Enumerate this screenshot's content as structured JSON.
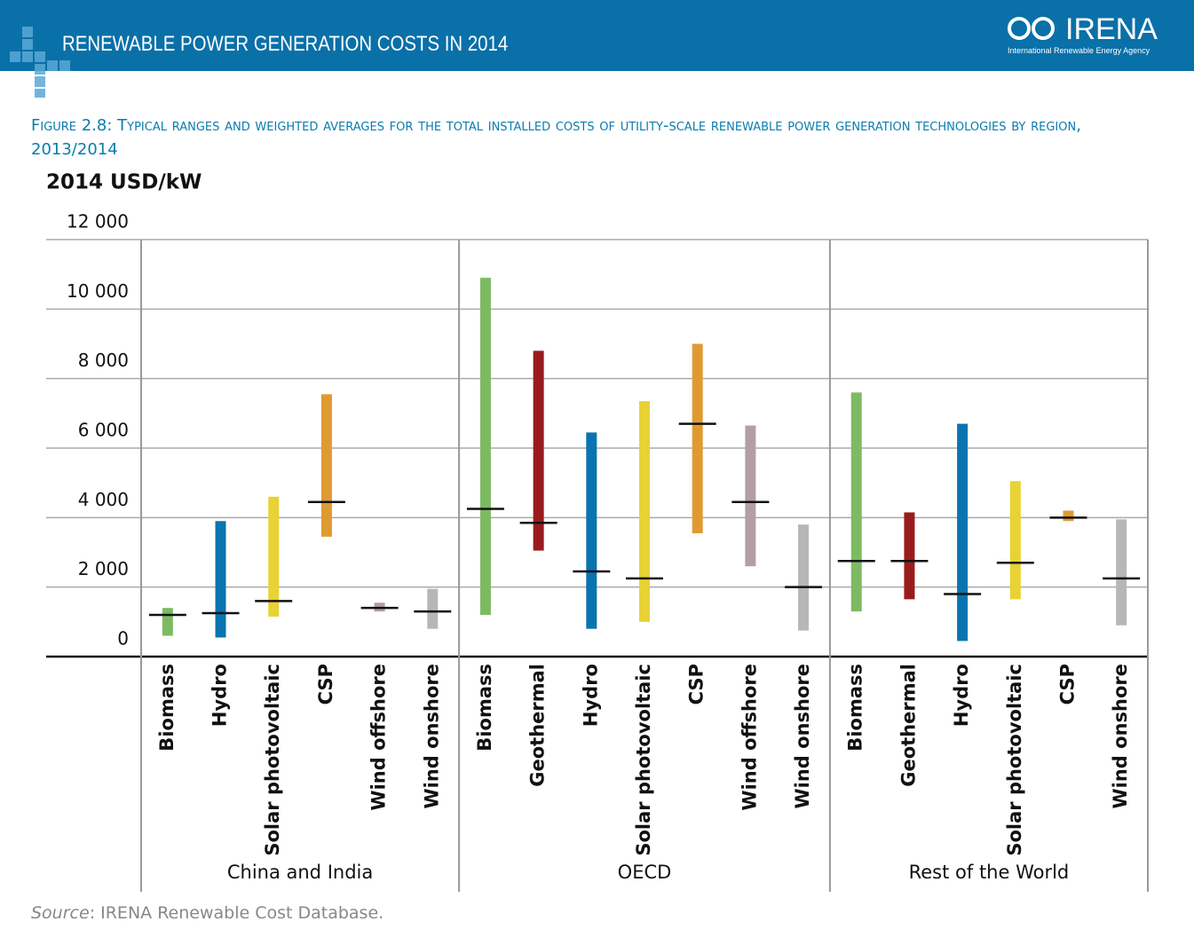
{
  "header": {
    "title": "RENEWABLE POWER GENERATION COSTS IN 2014",
    "logo": "IRENA",
    "logo_subtitle": "International Renewable Energy Agency"
  },
  "figure_title": "Figure 2.8: Typical ranges and weighted averages for the total installed costs of utility-scale renewable power generation technologies by region, 2013/2014",
  "source": {
    "label": "Source",
    "text": ": IRENA Renewable Cost Database."
  },
  "chart_data": {
    "type": "range",
    "y_label": "2014 USD/kW",
    "ylim": [
      0,
      12000
    ],
    "yticks": [
      0,
      {
        "value": 2000,
        "label": "2 000"
      },
      {
        "value": 4000,
        "label": "4 000"
      },
      {
        "value": 6000,
        "label": "6 000"
      },
      {
        "value": 8000,
        "label": "8 000"
      },
      {
        "value": 10000,
        "label": "10 000"
      },
      {
        "value": 12000,
        "label": "12 000"
      }
    ],
    "grid": true,
    "groups": [
      {
        "name": "China and India",
        "categories": [
          "Biomass",
          "Hydro",
          "Solar photovoltaic",
          "CSP",
          "Wind offshore",
          "Wind onshore"
        ],
        "low": [
          600,
          550,
          1150,
          3450,
          1300,
          800
        ],
        "high": [
          1400,
          3900,
          4600,
          7550,
          1550,
          1950
        ],
        "average": [
          1200,
          1250,
          1600,
          4450,
          1400,
          1300
        ],
        "colors": [
          "#7dbb62",
          "#0a74b0",
          "#e8d234",
          "#e09a32",
          "#b39ea5",
          "#b7b7ba"
        ]
      },
      {
        "name": "OECD",
        "categories": [
          "Biomass",
          "Geothermal",
          "Hydro",
          "Solar photovoltaic",
          "CSP",
          "Wind offshore",
          "Wind onshore"
        ],
        "low": [
          1200,
          3050,
          800,
          1000,
          3550,
          2600,
          750
        ],
        "high": [
          10900,
          8800,
          6450,
          7350,
          9000,
          6650,
          3800
        ],
        "average": [
          4250,
          3850,
          2450,
          2250,
          6700,
          4450,
          2000
        ],
        "colors": [
          "#7dbb62",
          "#9a1b1e",
          "#0a74b0",
          "#e8d234",
          "#e09a32",
          "#b39ea5",
          "#b7b7ba"
        ]
      },
      {
        "name": "Rest of the World",
        "categories": [
          "Biomass",
          "Geothermal",
          "Hydro",
          "Solar photovoltaic",
          "CSP",
          "Wind onshore"
        ],
        "low": [
          1300,
          1650,
          450,
          1650,
          3900,
          900
        ],
        "high": [
          7600,
          4150,
          6700,
          5050,
          4200,
          3950
        ],
        "average": [
          2750,
          2750,
          1800,
          2700,
          4000,
          2250
        ],
        "colors": [
          "#7dbb62",
          "#9a1b1e",
          "#0a74b0",
          "#e8d234",
          "#e09a32",
          "#b7b7ba"
        ]
      }
    ]
  }
}
